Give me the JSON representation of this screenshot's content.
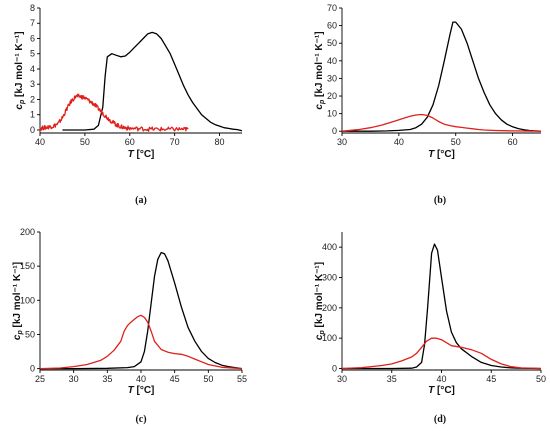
{
  "chart_data": [
    {
      "type": "line",
      "panel_label": "(a)",
      "ylabel_main": "c",
      "ylabel_sub": "p",
      "ylabel_unit": " [kJ mol⁻¹ K⁻¹]",
      "xlabel_var": "T",
      "xlabel_unit": " [°C]",
      "xlim": [
        40,
        85
      ],
      "ylim": [
        -0.2,
        8
      ],
      "xticks": [
        40,
        50,
        60,
        70,
        80
      ],
      "yticks": [
        0,
        1,
        2,
        3,
        4,
        5,
        6,
        7,
        8
      ],
      "series": [
        {
          "color": "#000000",
          "x": [
            45,
            50,
            52,
            53,
            54,
            54.5,
            55,
            56,
            57,
            58,
            59,
            60,
            61,
            62,
            63,
            64,
            65,
            66,
            67,
            68,
            69,
            70,
            71,
            72,
            73,
            74,
            75,
            76,
            77,
            78,
            79,
            80,
            81,
            82,
            83,
            84,
            85
          ],
          "y": [
            0,
            0,
            0.05,
            0.3,
            1.5,
            3.5,
            4.8,
            5.0,
            4.9,
            4.8,
            4.85,
            5.1,
            5.4,
            5.7,
            6.0,
            6.3,
            6.4,
            6.3,
            6.0,
            5.5,
            5.0,
            4.3,
            3.6,
            2.9,
            2.3,
            1.8,
            1.4,
            1.0,
            0.75,
            0.5,
            0.35,
            0.25,
            0.15,
            0.1,
            0.05,
            0.02,
            -0.05
          ]
        },
        {
          "color": "#e0201b",
          "noise": 0.14,
          "x": [
            40,
            41,
            42,
            43,
            44,
            45,
            46,
            47,
            48,
            49,
            50,
            51,
            52,
            53,
            54,
            55,
            56,
            57,
            58,
            59,
            60,
            62,
            64,
            66,
            68,
            70,
            72,
            73
          ],
          "y": [
            0.1,
            0.15,
            0.2,
            0.25,
            0.4,
            0.8,
            1.4,
            1.9,
            2.2,
            2.2,
            2.1,
            1.9,
            1.7,
            1.4,
            1.1,
            0.8,
            0.55,
            0.35,
            0.2,
            0.15,
            0.1,
            0.08,
            0.06,
            0.05,
            0.04,
            0.05,
            0.05,
            0.05
          ]
        }
      ]
    },
    {
      "type": "line",
      "panel_label": "(b)",
      "ylabel_main": "c",
      "ylabel_sub": "p",
      "ylabel_unit": " [kJ mol⁻¹ K⁻¹]",
      "xlabel_var": "T",
      "xlabel_unit": " [°C]",
      "xlim": [
        30,
        65
      ],
      "ylim": [
        -1,
        70
      ],
      "xticks": [
        30,
        40,
        50,
        60
      ],
      "yticks": [
        0,
        10,
        20,
        30,
        40,
        50,
        60,
        70
      ],
      "series": [
        {
          "color": "#000000",
          "x": [
            30,
            35,
            38,
            40,
            42,
            43,
            44,
            45,
            46,
            47,
            48,
            49,
            49.5,
            50,
            51,
            52,
            53,
            54,
            55,
            56,
            57,
            58,
            59,
            60,
            61,
            62,
            63,
            64,
            65
          ],
          "y": [
            0,
            0,
            0.2,
            0.5,
            1,
            2,
            4,
            8,
            15,
            26,
            40,
            55,
            62,
            62,
            58,
            50,
            40,
            30,
            22,
            15,
            10,
            6.5,
            4,
            2.5,
            1.5,
            0.8,
            0.4,
            0.2,
            0
          ]
        },
        {
          "color": "#e0201b",
          "x": [
            30,
            33,
            35,
            37,
            39,
            41,
            42,
            43,
            44,
            45,
            46,
            47,
            48,
            49,
            50,
            51,
            52,
            53,
            54,
            55,
            57,
            60,
            65
          ],
          "y": [
            0,
            1,
            2,
            3.5,
            5.5,
            7.5,
            8.5,
            9.2,
            9.5,
            9.0,
            7.5,
            5.5,
            4.0,
            3.2,
            2.6,
            2.2,
            1.8,
            1.4,
            1.0,
            0.7,
            0.4,
            0.2,
            0
          ]
        }
      ]
    },
    {
      "type": "line",
      "panel_label": "(c)",
      "ylabel_main": "c",
      "ylabel_sub": "p",
      "ylabel_unit": " [kJ mol⁻¹ K⁻¹]",
      "xlabel_var": "T",
      "xlabel_unit": " [°C]",
      "xlim": [
        25,
        55
      ],
      "ylim": [
        -2,
        200
      ],
      "xticks": [
        25,
        30,
        35,
        40,
        45,
        50,
        55
      ],
      "yticks": [
        0,
        50,
        100,
        150,
        200
      ],
      "series": [
        {
          "color": "#000000",
          "x": [
            25,
            30,
            35,
            38,
            39,
            40,
            40.5,
            41,
            41.5,
            42,
            42.5,
            43,
            43.5,
            44,
            45,
            46,
            47,
            48,
            49,
            50,
            51,
            52,
            53,
            54,
            55
          ],
          "y": [
            0,
            0,
            0.5,
            1.5,
            3,
            10,
            25,
            55,
            95,
            135,
            160,
            170,
            168,
            158,
            125,
            90,
            60,
            40,
            25,
            15,
            9,
            5,
            3,
            1.5,
            0
          ]
        },
        {
          "color": "#e0201b",
          "x": [
            25,
            28,
            30,
            32,
            34,
            35,
            36,
            37,
            37.5,
            38,
            38.5,
            39,
            39.5,
            40,
            40.5,
            41,
            41.5,
            42,
            43,
            44,
            45,
            46,
            47,
            48,
            49,
            50,
            52,
            55
          ],
          "y": [
            0,
            1,
            3,
            6,
            12,
            18,
            27,
            40,
            55,
            63,
            68,
            72,
            76,
            78,
            75,
            68,
            55,
            40,
            28,
            24,
            22,
            21,
            18,
            14,
            10,
            6,
            2,
            0
          ]
        }
      ]
    },
    {
      "type": "line",
      "panel_label": "(d)",
      "ylabel_main": "c",
      "ylabel_sub": "p",
      "ylabel_unit": " [kJ mol⁻¹ K⁻¹]",
      "xlabel_var": "T",
      "xlabel_unit": " [°C]",
      "xlim": [
        30,
        50
      ],
      "ylim": [
        -5,
        450
      ],
      "xticks": [
        30,
        35,
        40,
        45,
        50
      ],
      "yticks": [
        0,
        100,
        200,
        300,
        400
      ],
      "series": [
        {
          "color": "#000000",
          "x": [
            30,
            35,
            37,
            37.5,
            38,
            38.3,
            38.6,
            39,
            39.3,
            39.6,
            40,
            40.5,
            41,
            41.5,
            42,
            43,
            44,
            45,
            46,
            47,
            48,
            50
          ],
          "y": [
            0,
            0,
            1,
            5,
            20,
            80,
            200,
            380,
            410,
            390,
            300,
            190,
            120,
            85,
            65,
            40,
            20,
            10,
            5,
            2,
            1,
            0
          ]
        },
        {
          "color": "#e0201b",
          "x": [
            30,
            32,
            34,
            35,
            36,
            37,
            37.5,
            38,
            38.5,
            39,
            39.5,
            40,
            40.5,
            41,
            42,
            43,
            44,
            45,
            46,
            47,
            48,
            50
          ],
          "y": [
            0,
            3,
            10,
            15,
            25,
            38,
            50,
            70,
            90,
            100,
            100,
            95,
            85,
            75,
            70,
            62,
            50,
            30,
            15,
            6,
            2,
            0
          ]
        }
      ]
    }
  ]
}
